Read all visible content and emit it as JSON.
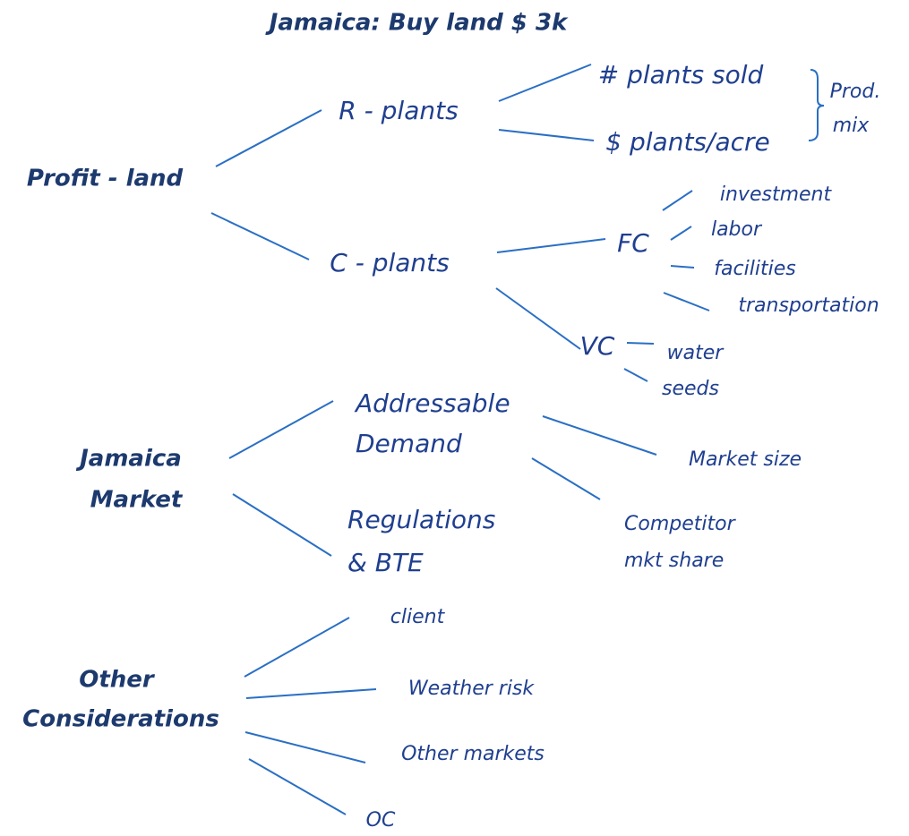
{
  "title": "Jamaica: Buy land $ 3k",
  "nodes": [
    {
      "lines": [
        "Profit - land"
      ]
    },
    {
      "lines": [
        "R - plants"
      ]
    },
    {
      "lines": [
        "C - plants"
      ]
    },
    {
      "lines": [
        "# plants sold"
      ]
    },
    {
      "lines": [
        "$ plants/acre"
      ]
    },
    {
      "lines": [
        "Prod.",
        "mix"
      ]
    },
    {
      "lines": [
        "FC"
      ]
    },
    {
      "lines": [
        "VC"
      ]
    },
    {
      "lines": [
        "investment"
      ]
    },
    {
      "lines": [
        "labor"
      ]
    },
    {
      "lines": [
        "facilities"
      ]
    },
    {
      "lines": [
        "transportation"
      ]
    },
    {
      "lines": [
        "water"
      ]
    },
    {
      "lines": [
        "seeds"
      ]
    },
    {
      "lines": [
        "Jamaica",
        "Market"
      ]
    },
    {
      "lines": [
        "Addressable",
        "Demand"
      ]
    },
    {
      "lines": [
        "Regulations",
        "& BTE"
      ]
    },
    {
      "lines": [
        "Market size"
      ]
    },
    {
      "lines": [
        "Competitor",
        "mkt share"
      ]
    },
    {
      "lines": [
        "Other",
        "Considerations"
      ]
    },
    {
      "lines": [
        "client"
      ]
    },
    {
      "lines": [
        "Weather risk"
      ]
    },
    {
      "lines": [
        "Other markets"
      ]
    },
    {
      "lines": [
        "OC"
      ]
    }
  ]
}
